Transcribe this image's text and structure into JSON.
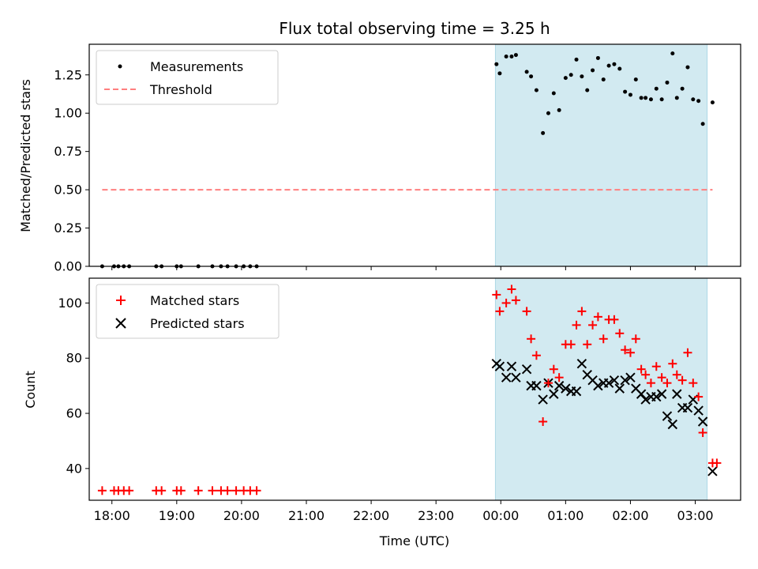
{
  "chart_data": {
    "type": "scatter",
    "title": "Flux total observing time = 3.25 h",
    "xlabel": "Time (UTC)",
    "x_tick_labels": [
      "18:00",
      "19:00",
      "20:00",
      "21:00",
      "22:00",
      "23:00",
      "00:00",
      "01:00",
      "02:00",
      "03:00"
    ],
    "x_range": [
      "17:39",
      "03:42"
    ],
    "observing_window": {
      "start": "23:55",
      "end": "03:11",
      "color": "#add8e6"
    },
    "top_panel": {
      "ylabel": "Matched/Predicted stars",
      "ylim": [
        0,
        1.45
      ],
      "y_ticks": [
        "0.00",
        "0.25",
        "0.50",
        "0.75",
        "1.00",
        "1.25"
      ],
      "legend": "top-left",
      "series": [
        {
          "name": "Measurements",
          "type": "scatter",
          "marker": "dot",
          "color": "#000000",
          "x": [
            "17:51",
            "18:02",
            "18:06",
            "18:11",
            "18:16",
            "18:41",
            "18:46",
            "19:00",
            "19:04",
            "19:20",
            "19:33",
            "19:41",
            "19:47",
            "19:55",
            "20:02",
            "20:08",
            "20:14",
            "23:56",
            "23:59",
            "00:05",
            "00:10",
            "00:14",
            "00:24",
            "00:28",
            "00:33",
            "00:39",
            "00:44",
            "00:49",
            "00:54",
            "01:00",
            "01:05",
            "01:10",
            "01:15",
            "01:20",
            "01:25",
            "01:30",
            "01:35",
            "01:40",
            "01:45",
            "01:50",
            "01:55",
            "02:00",
            "02:05",
            "02:10",
            "02:14",
            "02:19",
            "02:24",
            "02:29",
            "02:34",
            "02:39",
            "02:43",
            "02:48",
            "02:53",
            "02:58",
            "03:03",
            "03:07",
            "03:16"
          ],
          "y": [
            0,
            0,
            0,
            0,
            0,
            0,
            0,
            0,
            0,
            0,
            0,
            0,
            0,
            0,
            0,
            0,
            0,
            1.32,
            1.26,
            1.37,
            1.37,
            1.38,
            1.27,
            1.24,
            1.15,
            0.87,
            1.0,
            1.13,
            1.02,
            1.23,
            1.25,
            1.35,
            1.24,
            1.15,
            1.28,
            1.36,
            1.22,
            1.31,
            1.32,
            1.29,
            1.14,
            1.12,
            1.22,
            1.1,
            1.1,
            1.09,
            1.16,
            1.09,
            1.2,
            1.39,
            1.1,
            1.16,
            1.3,
            1.09,
            1.08,
            0.93,
            1.07
          ]
        },
        {
          "name": "Threshold",
          "type": "line",
          "style": "dashed",
          "color": "#ff7f7f",
          "x": [
            "17:51",
            "03:16"
          ],
          "y": [
            0.5,
            0.5
          ]
        }
      ]
    },
    "bottom_panel": {
      "ylabel": "Count",
      "ylim": [
        28.5,
        109
      ],
      "y_ticks": [
        "40",
        "60",
        "80",
        "100"
      ],
      "legend": "top-left",
      "series": [
        {
          "name": "Matched stars",
          "marker": "plus",
          "color": "#ff0000",
          "x": [
            "17:51",
            "18:02",
            "18:06",
            "18:11",
            "18:16",
            "18:41",
            "18:46",
            "19:00",
            "19:04",
            "19:20",
            "19:33",
            "19:41",
            "19:47",
            "19:55",
            "20:02",
            "20:08",
            "20:14",
            "23:56",
            "23:59",
            "00:05",
            "00:10",
            "00:14",
            "00:24",
            "00:28",
            "00:33",
            "00:39",
            "00:44",
            "00:49",
            "00:54",
            "01:00",
            "01:05",
            "01:10",
            "01:15",
            "01:20",
            "01:25",
            "01:30",
            "01:35",
            "01:40",
            "01:45",
            "01:50",
            "01:55",
            "02:00",
            "02:05",
            "02:10",
            "02:14",
            "02:19",
            "02:24",
            "02:29",
            "02:34",
            "02:39",
            "02:43",
            "02:48",
            "02:53",
            "02:58",
            "03:03",
            "03:07",
            "03:16",
            "03:20"
          ],
          "y": [
            32,
            32,
            32,
            32,
            32,
            32,
            32,
            32,
            32,
            32,
            32,
            32,
            32,
            32,
            32,
            32,
            32,
            103,
            97,
            100,
            105,
            101,
            97,
            87,
            81,
            57,
            71,
            76,
            73,
            85,
            85,
            92,
            97,
            85,
            92,
            95,
            87,
            94,
            94,
            89,
            83,
            82,
            87,
            76,
            74,
            71,
            77,
            73,
            71,
            78,
            74,
            72,
            82,
            71,
            66,
            53,
            42,
            42
          ]
        },
        {
          "name": "Predicted stars",
          "marker": "x",
          "color": "#000000",
          "x": [
            "23:56",
            "23:59",
            "00:05",
            "00:10",
            "00:14",
            "00:24",
            "00:28",
            "00:33",
            "00:39",
            "00:44",
            "00:49",
            "00:54",
            "01:00",
            "01:05",
            "01:10",
            "01:15",
            "01:20",
            "01:25",
            "01:30",
            "01:35",
            "01:40",
            "01:45",
            "01:50",
            "01:55",
            "02:00",
            "02:05",
            "02:10",
            "02:14",
            "02:19",
            "02:24",
            "02:29",
            "02:34",
            "02:39",
            "02:43",
            "02:48",
            "02:53",
            "02:58",
            "03:03",
            "03:07",
            "03:16"
          ],
          "y": [
            78,
            77,
            73,
            77,
            73,
            76,
            70,
            70,
            65,
            71,
            67,
            70,
            69,
            68,
            68,
            78,
            74,
            72,
            70,
            71,
            71,
            72,
            69,
            72,
            73,
            69,
            67,
            65,
            66,
            66,
            67,
            59,
            56,
            67,
            62,
            62,
            65,
            61,
            57,
            39
          ]
        }
      ]
    }
  }
}
